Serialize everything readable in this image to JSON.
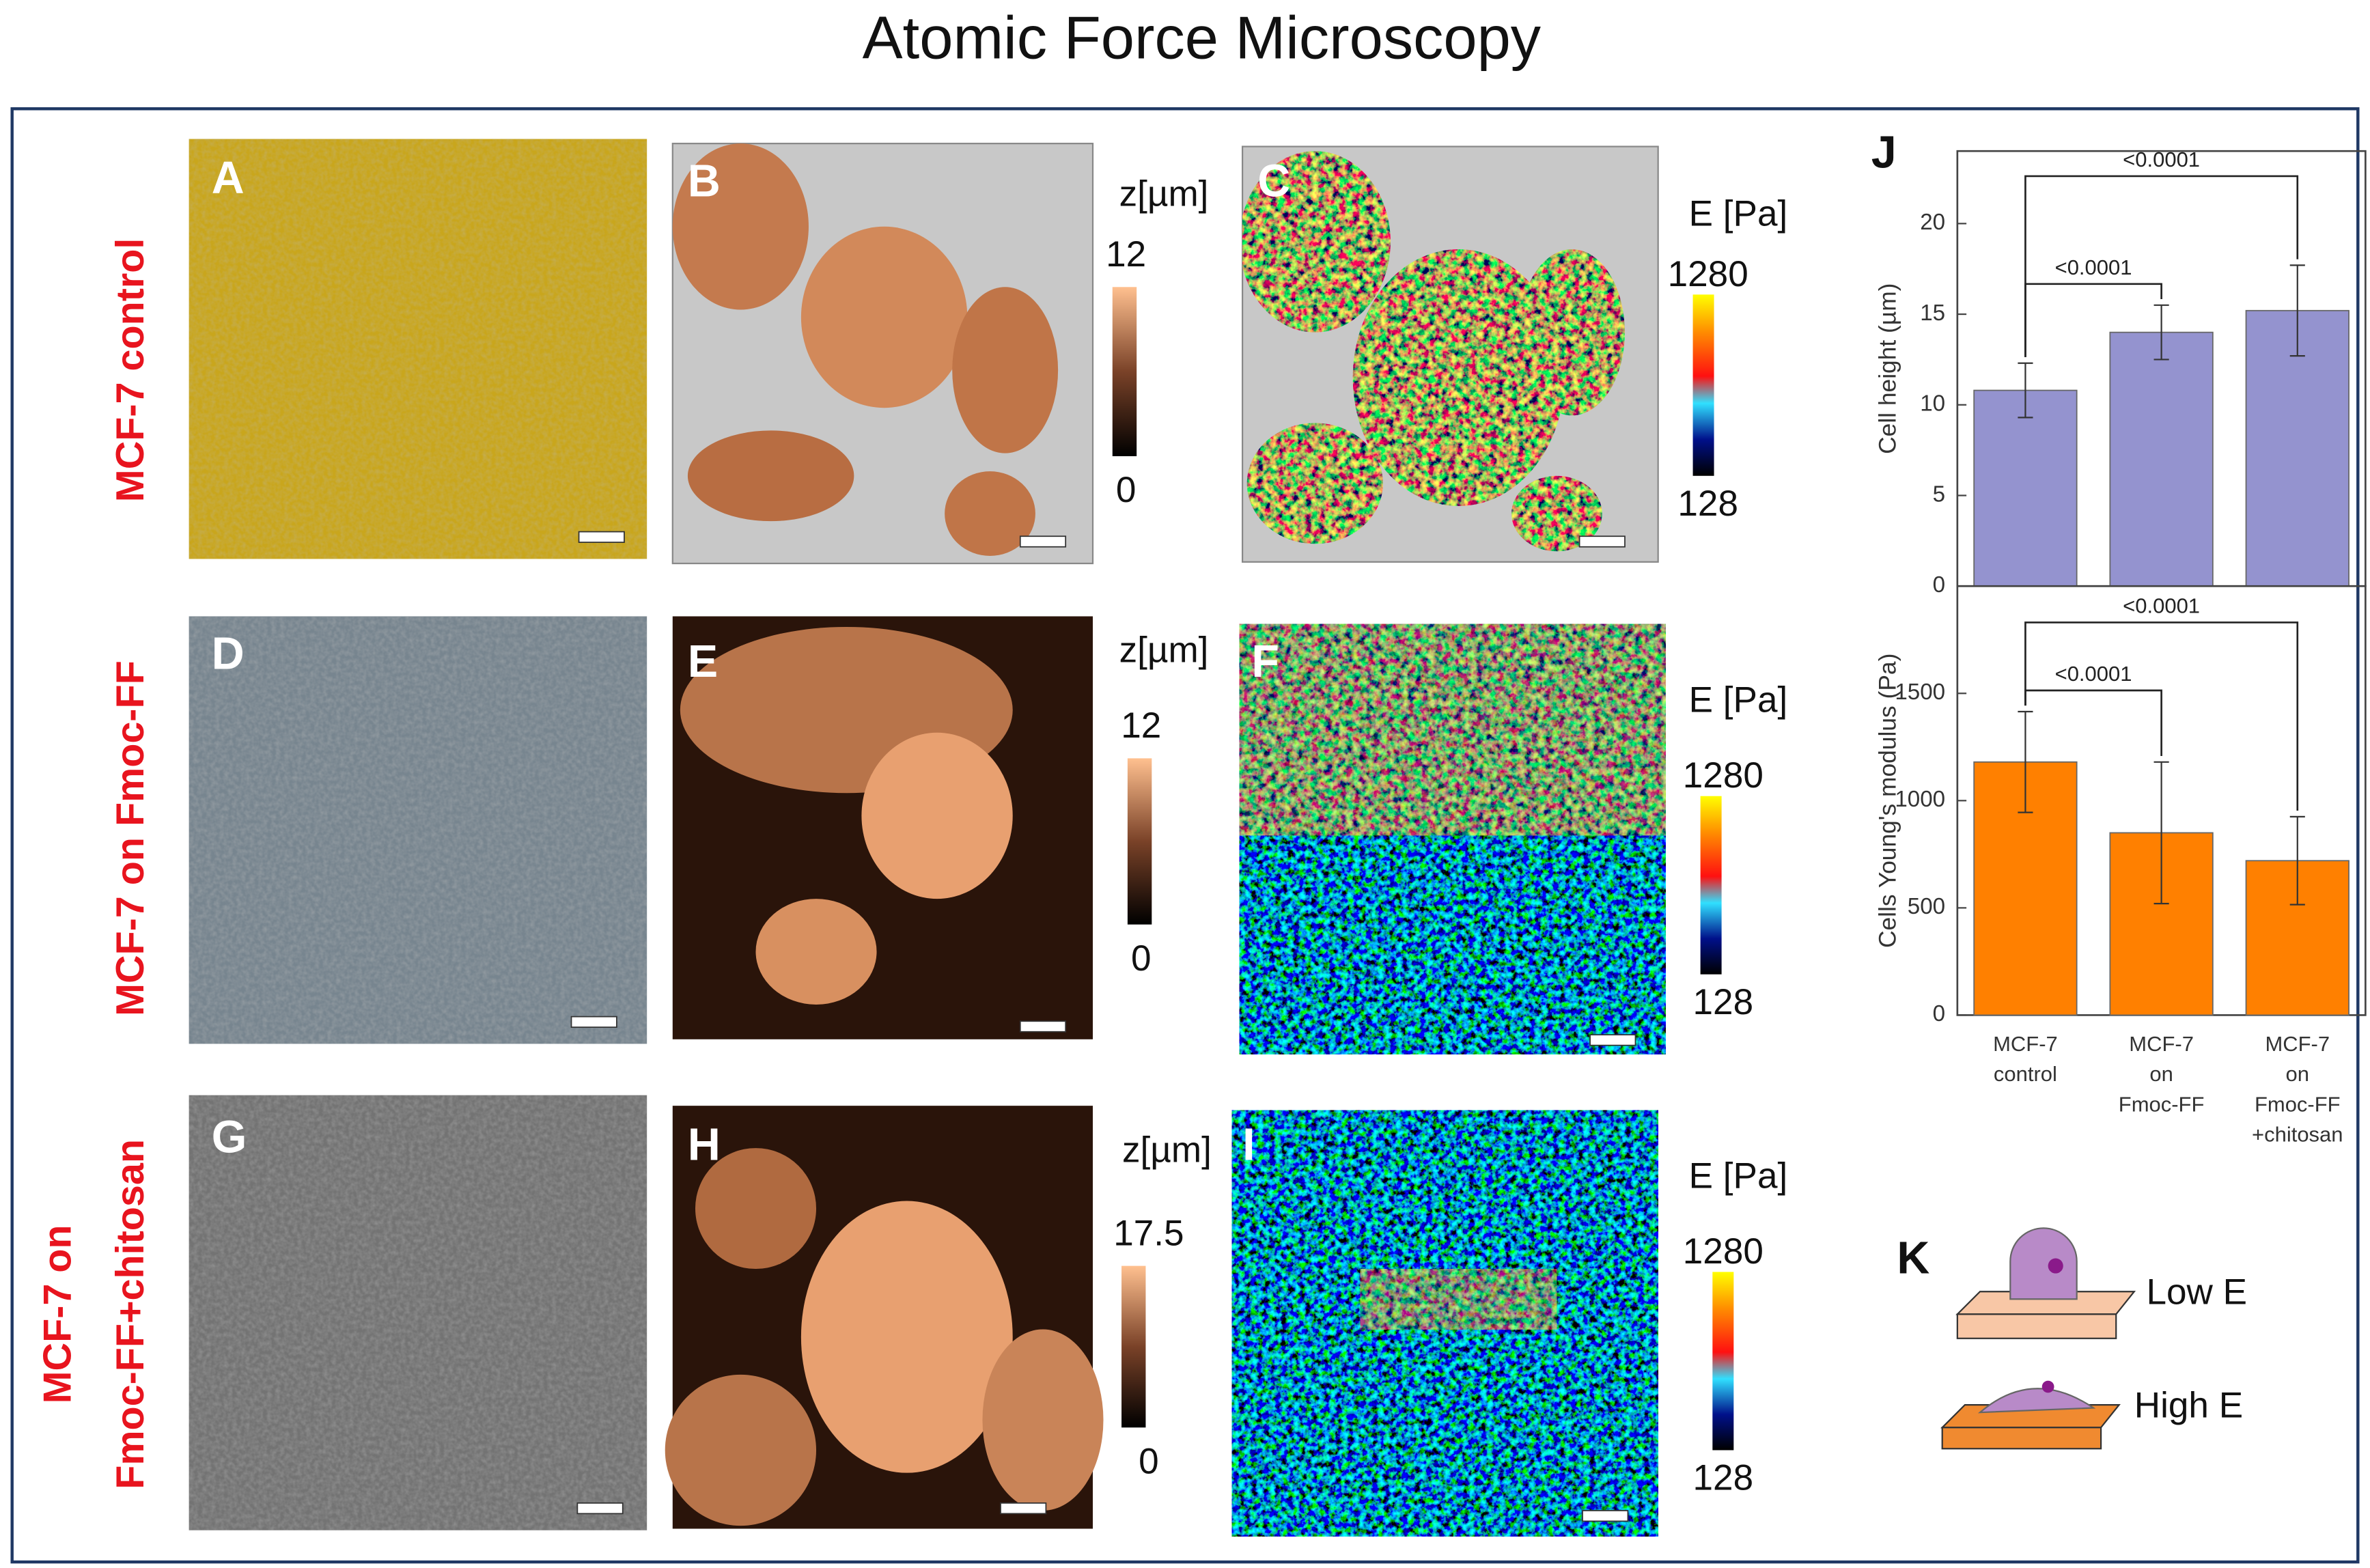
{
  "title": "Atomic Force Microscopy",
  "rows": [
    [
      "MCF-7 control"
    ],
    [
      "MCF-7 on Fmoc-FF"
    ],
    [
      "MCF-7 on",
      "Fmoc-FF+chitosan"
    ]
  ],
  "panels": [
    "A",
    "B",
    "C",
    "D",
    "E",
    "F",
    "G",
    "H",
    "I",
    "J",
    "K"
  ],
  "height_colorbars": [
    {
      "label": "z[µm]",
      "max": 12,
      "min": 0
    },
    {
      "label": "z[µm]",
      "max": 12,
      "min": 0
    },
    {
      "label": "z[µm]",
      "max": 17.5,
      "min": 0
    }
  ],
  "modulus_colorbars": [
    {
      "label": "E [Pa]",
      "max": 1280,
      "min": 128
    },
    {
      "label": "E [Pa]",
      "max": 1280,
      "min": 128
    },
    {
      "label": "E [Pa]",
      "max": 1280,
      "min": 128
    }
  ],
  "chart_data": [
    {
      "type": "bar",
      "ylabel": "Cell height (µm)",
      "color": "#9493cf",
      "values": [
        10.8,
        14.0,
        15.2
      ],
      "errors": [
        1.5,
        1.5,
        2.5
      ],
      "ylim": [
        0,
        24
      ],
      "yticks": [
        0,
        5,
        10,
        15,
        20
      ],
      "comparisons": [
        {
          "label": "<0.0001",
          "pair": [
            0,
            1
          ]
        },
        {
          "label": "<0.0001",
          "pair": [
            0,
            2
          ]
        }
      ]
    },
    {
      "type": "bar",
      "ylabel": "Cells Young's modulus (Pa)",
      "color": "#ff8000",
      "categories": [
        [
          "MCF-7",
          "control"
        ],
        [
          "MCF-7",
          "on",
          "Fmoc-FF"
        ],
        [
          "MCF-7",
          "on",
          "Fmoc-FF",
          "+chitosan"
        ]
      ],
      "values": [
        1180,
        850,
        720
      ],
      "errors": [
        235,
        330,
        205
      ],
      "ylim": [
        0,
        2000
      ],
      "yticks": [
        0,
        500,
        1000,
        1500
      ],
      "comparisons": [
        {
          "label": "<0.0001",
          "pair": [
            0,
            1
          ]
        },
        {
          "label": "<0.0001",
          "pair": [
            0,
            2
          ]
        }
      ]
    }
  ],
  "diagram": {
    "low": "Low E",
    "high": "High E"
  }
}
